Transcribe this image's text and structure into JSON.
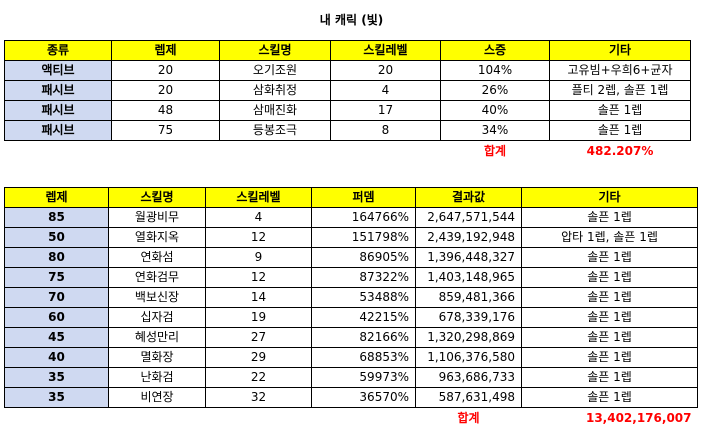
{
  "page_title": "내 캐릭 (빛)",
  "table1": {
    "headers": [
      "종류",
      "렙제",
      "스킬명",
      "스킬레벨",
      "스증",
      "기타"
    ],
    "rows": [
      [
        "액티브",
        "20",
        "오기조원",
        "20",
        "104%",
        "고유빔+우희6+균자"
      ],
      [
        "패시브",
        "20",
        "삼화취정",
        "4",
        "26%",
        "플티 2렙, 솔픈 1렙"
      ],
      [
        "패시브",
        "48",
        "삼매진화",
        "17",
        "40%",
        "솔픈 1렙"
      ],
      [
        "패시브",
        "75",
        "등봉조극",
        "8",
        "34%",
        "솔픈 1렙"
      ]
    ],
    "sum_label": "합계",
    "sum_value": "482.207%"
  },
  "table2": {
    "headers": [
      "렙제",
      "스킬명",
      "스킬레벨",
      "퍼뎀",
      "결과값",
      "기타"
    ],
    "rows": [
      [
        "85",
        "월광비무",
        "4",
        "164766%",
        "2,647,571,544",
        "솔픈 1렙"
      ],
      [
        "50",
        "열화지옥",
        "12",
        "151798%",
        "2,439,192,948",
        "압타 1렙, 솔픈 1렙"
      ],
      [
        "80",
        "연화섬",
        "9",
        "86905%",
        "1,396,448,327",
        "솔픈 1렙"
      ],
      [
        "75",
        "연화검무",
        "12",
        "87322%",
        "1,403,148,965",
        "솔픈 1렙"
      ],
      [
        "70",
        "백보신장",
        "14",
        "53488%",
        "859,481,366",
        "솔픈 1렙"
      ],
      [
        "60",
        "십자검",
        "19",
        "42215%",
        "678,339,176",
        "솔픈 1렙"
      ],
      [
        "45",
        "혜성만리",
        "27",
        "82166%",
        "1,320,298,869",
        "솔픈 1렙"
      ],
      [
        "40",
        "멸화장",
        "29",
        "68853%",
        "1,106,376,580",
        "솔픈 1렙"
      ],
      [
        "35",
        "난화검",
        "22",
        "59973%",
        "963,686,733",
        "솔픈 1렙"
      ],
      [
        "35",
        "비연장",
        "32",
        "36570%",
        "587,631,498",
        "솔픈 1렙"
      ]
    ],
    "sum_label": "합계",
    "sum_value": "13,402,176,007"
  }
}
